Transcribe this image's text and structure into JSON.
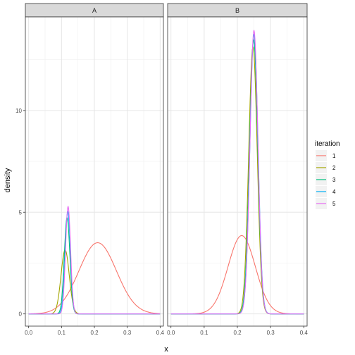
{
  "chart_data": {
    "type": "line",
    "xlabel": "x",
    "ylabel": "density",
    "xlim": [
      -0.01,
      0.41
    ],
    "ylim": [
      -0.6,
      14.6
    ],
    "x_ticks": [
      "0.0",
      "0.1",
      "0.2",
      "0.3",
      "0.4"
    ],
    "x_tick_values": [
      0.0,
      0.1,
      0.2,
      0.3,
      0.4
    ],
    "y_ticks": [
      "0",
      "5",
      "10"
    ],
    "y_tick_values": [
      0,
      5,
      10
    ],
    "grid": true,
    "legend": {
      "title": "iteration",
      "placement": "right",
      "entries": [
        "1",
        "2",
        "3",
        "4",
        "5"
      ]
    },
    "series_colors": [
      "#F8766D",
      "#A3A500",
      "#00BF7D",
      "#00B0F6",
      "#E76BF3"
    ],
    "panels": [
      {
        "label": "A",
        "series": [
          {
            "name": "1",
            "mu": 0.21,
            "sigma": 0.057,
            "values_note": "",
            "peak": 3.5
          },
          {
            "name": "2",
            "mu": 0.111,
            "sigma": 0.0125,
            "peak": 3.15
          },
          {
            "name": "3",
            "mu": 0.117,
            "sigma": 0.0085,
            "peak": 4.75
          },
          {
            "name": "4",
            "mu": 0.119,
            "sigma": 0.008,
            "peak": 5.05
          },
          {
            "name": "5",
            "mu": 0.12,
            "sigma": 0.0076,
            "peak": 5.3
          }
        ]
      },
      {
        "label": "B",
        "series": [
          {
            "name": "1",
            "mu": 0.213,
            "sigma": 0.041,
            "peak": 3.85
          },
          {
            "name": "2",
            "mu": 0.247,
            "sigma": 0.0128,
            "peak": 13.15
          },
          {
            "name": "3",
            "mu": 0.249,
            "sigma": 0.0124,
            "peak": 13.5
          },
          {
            "name": "4",
            "mu": 0.25,
            "sigma": 0.0122,
            "peak": 13.75
          },
          {
            "name": "5",
            "mu": 0.25,
            "sigma": 0.012,
            "peak": 13.95
          }
        ]
      }
    ]
  }
}
